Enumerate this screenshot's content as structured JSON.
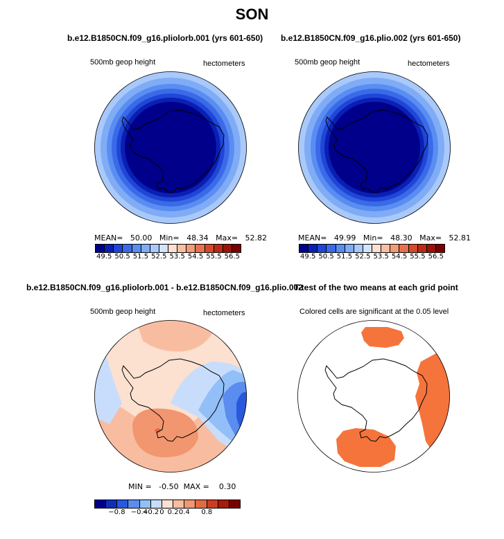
{
  "title": "SON",
  "panels": [
    {
      "title": "b.e12.B1850CN.f09_g16.pliolorb.001 (yrs 601-650)",
      "left_label": "500mb geop height",
      "right_label": "hectometers",
      "stats": "MEAN=   50.00   Min=   48.34   Max=   52.82",
      "colorbar_labels": [
        "49.5",
        "50.5",
        "51.5",
        "52.5",
        "53.5",
        "54.5",
        "55.5",
        "56.5"
      ]
    },
    {
      "title": "b.e12.B1850CN.f09_g16.plio.002 (yrs 601-650)",
      "left_label": "500mb geop height",
      "right_label": "hectometers",
      "stats": "MEAN=   49.99   Min=   48.30   Max=   52.81",
      "colorbar_labels": [
        "49.5",
        "50.5",
        "51.5",
        "52.5",
        "53.5",
        "54.5",
        "55.5",
        "56.5"
      ]
    },
    {
      "title": "b.e12.B1850CN.f09_g16.pliolorb.001 - b.e12.B1850CN.f09_g16.plio.002",
      "left_label": "500mb geop height",
      "right_label": "hectometers",
      "stats": "MIN =   -0.50  MAX =    0.30",
      "colorbar_labels": [
        "−0.8",
        "−0.4",
        "−0.2",
        "0",
        "0.2",
        "0.4",
        "0.8"
      ]
    },
    {
      "title": "T-test of the two means at each grid point",
      "left_label": "Colored cells are significant at the 0.05 level"
    }
  ],
  "colors": {
    "abs_scale": [
      "#00008b",
      "#0a1fb4",
      "#1f46d6",
      "#3b6ae8",
      "#5a8df2",
      "#80acf6",
      "#a9c9fa",
      "#d2e3fc",
      "#fde0d2",
      "#f9bfa4",
      "#f39b77",
      "#e7714d",
      "#d54a2b",
      "#bb2a16",
      "#9a1208",
      "#7a0000"
    ],
    "diff_scale": [
      "#00008b",
      "#0f2fb9",
      "#2a58dd",
      "#5b8cf0",
      "#93bff8",
      "#c8ddfb",
      "#fce0d0",
      "#f8bda1",
      "#f2966f",
      "#e56a43",
      "#cb3d20",
      "#a71b0b",
      "#7a0000"
    ],
    "ttest_fill": "#f5743c"
  }
}
